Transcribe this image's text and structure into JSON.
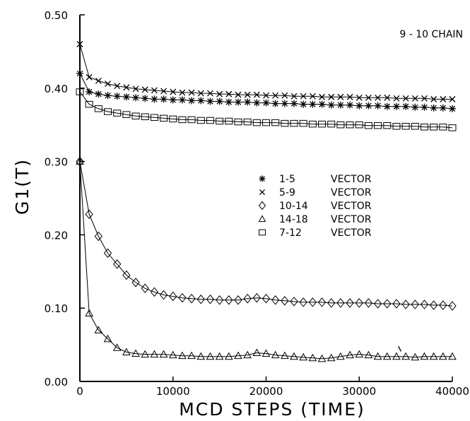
{
  "chart_data": {
    "type": "scatter",
    "title": "",
    "annotation": "9 - 10 CHAIN",
    "xlabel": "MCD STEPS (TIME)",
    "ylabel": "G1(T)",
    "xlim": [
      0,
      40000
    ],
    "ylim": [
      0.0,
      0.5
    ],
    "xticks": [
      0,
      10000,
      20000,
      30000,
      40000
    ],
    "xtick_labels": [
      "0",
      "10000",
      "20000",
      "30000",
      "40000"
    ],
    "yticks": [
      0.0,
      0.1,
      0.2,
      0.3,
      0.4,
      0.5
    ],
    "ytick_labels": [
      "0.00",
      "0.10",
      "0.20",
      "0.30",
      "0.40",
      "0.50"
    ],
    "grid": false,
    "legend_position": "center-right",
    "series": [
      {
        "name": "1-5",
        "legend_label": "VECTOR",
        "marker": "asterisk",
        "x": [
          0,
          1000,
          2000,
          3000,
          4000,
          5000,
          6000,
          7000,
          8000,
          9000,
          10000,
          11000,
          12000,
          13000,
          14000,
          15000,
          16000,
          17000,
          18000,
          19000,
          20000,
          21000,
          22000,
          23000,
          24000,
          25000,
          26000,
          27000,
          28000,
          29000,
          30000,
          31000,
          32000,
          33000,
          34000,
          35000,
          36000,
          37000,
          38000,
          39000,
          40000
        ],
        "y": [
          0.42,
          0.395,
          0.392,
          0.39,
          0.389,
          0.388,
          0.387,
          0.386,
          0.385,
          0.385,
          0.384,
          0.384,
          0.383,
          0.383,
          0.382,
          0.382,
          0.381,
          0.381,
          0.381,
          0.38,
          0.38,
          0.379,
          0.379,
          0.379,
          0.378,
          0.378,
          0.378,
          0.377,
          0.377,
          0.377,
          0.376,
          0.376,
          0.376,
          0.375,
          0.375,
          0.375,
          0.374,
          0.374,
          0.373,
          0.373,
          0.372
        ]
      },
      {
        "name": "5-9",
        "legend_label": "VECTOR",
        "marker": "x",
        "x": [
          0,
          1000,
          2000,
          3000,
          4000,
          5000,
          6000,
          7000,
          8000,
          9000,
          10000,
          11000,
          12000,
          13000,
          14000,
          15000,
          16000,
          17000,
          18000,
          19000,
          20000,
          21000,
          22000,
          23000,
          24000,
          25000,
          26000,
          27000,
          28000,
          29000,
          30000,
          31000,
          32000,
          33000,
          34000,
          35000,
          36000,
          37000,
          38000,
          39000,
          40000
        ],
        "y": [
          0.46,
          0.415,
          0.41,
          0.406,
          0.403,
          0.401,
          0.399,
          0.398,
          0.397,
          0.396,
          0.395,
          0.394,
          0.394,
          0.393,
          0.393,
          0.392,
          0.392,
          0.391,
          0.391,
          0.391,
          0.39,
          0.39,
          0.39,
          0.389,
          0.389,
          0.389,
          0.388,
          0.388,
          0.388,
          0.388,
          0.387,
          0.387,
          0.387,
          0.387,
          0.386,
          0.386,
          0.386,
          0.386,
          0.385,
          0.385,
          0.385
        ]
      },
      {
        "name": "10-14",
        "legend_label": "VECTOR",
        "marker": "diamond",
        "x": [
          0,
          1000,
          2000,
          3000,
          4000,
          5000,
          6000,
          7000,
          8000,
          9000,
          10000,
          11000,
          12000,
          13000,
          14000,
          15000,
          16000,
          17000,
          18000,
          19000,
          20000,
          21000,
          22000,
          23000,
          24000,
          25000,
          26000,
          27000,
          28000,
          29000,
          30000,
          31000,
          32000,
          33000,
          34000,
          35000,
          36000,
          37000,
          38000,
          39000,
          40000
        ],
        "y": [
          0.3,
          0.228,
          0.198,
          0.175,
          0.16,
          0.145,
          0.135,
          0.127,
          0.122,
          0.118,
          0.116,
          0.114,
          0.113,
          0.112,
          0.112,
          0.111,
          0.111,
          0.111,
          0.113,
          0.114,
          0.113,
          0.111,
          0.11,
          0.109,
          0.108,
          0.108,
          0.108,
          0.107,
          0.107,
          0.107,
          0.107,
          0.107,
          0.106,
          0.106,
          0.106,
          0.105,
          0.105,
          0.105,
          0.104,
          0.104,
          0.103
        ]
      },
      {
        "name": "14-18",
        "legend_label": "VECTOR",
        "marker": "triangle",
        "x": [
          0,
          1000,
          2000,
          3000,
          4000,
          5000,
          6000,
          7000,
          8000,
          9000,
          10000,
          11000,
          12000,
          13000,
          14000,
          15000,
          16000,
          17000,
          18000,
          19000,
          20000,
          21000,
          22000,
          23000,
          24000,
          25000,
          26000,
          27000,
          28000,
          29000,
          30000,
          31000,
          32000,
          33000,
          34000,
          35000,
          36000,
          37000,
          38000,
          39000,
          40000
        ],
        "y": [
          0.3,
          0.093,
          0.07,
          0.058,
          0.046,
          0.04,
          0.038,
          0.037,
          0.037,
          0.037,
          0.036,
          0.035,
          0.035,
          0.034,
          0.034,
          0.034,
          0.034,
          0.035,
          0.036,
          0.039,
          0.038,
          0.036,
          0.035,
          0.034,
          0.033,
          0.032,
          0.031,
          0.032,
          0.034,
          0.036,
          0.037,
          0.036,
          0.034,
          0.034,
          0.034,
          0.034,
          0.033,
          0.034,
          0.034,
          0.034,
          0.034
        ]
      },
      {
        "name": "7-12",
        "legend_label": "VECTOR",
        "marker": "square",
        "x": [
          0,
          1000,
          2000,
          3000,
          4000,
          5000,
          6000,
          7000,
          8000,
          9000,
          10000,
          11000,
          12000,
          13000,
          14000,
          15000,
          16000,
          17000,
          18000,
          19000,
          20000,
          21000,
          22000,
          23000,
          24000,
          25000,
          26000,
          27000,
          28000,
          29000,
          30000,
          31000,
          32000,
          33000,
          34000,
          35000,
          36000,
          37000,
          38000,
          39000,
          40000
        ],
        "y": [
          0.395,
          0.378,
          0.372,
          0.368,
          0.366,
          0.364,
          0.362,
          0.361,
          0.36,
          0.359,
          0.358,
          0.357,
          0.357,
          0.356,
          0.356,
          0.355,
          0.355,
          0.354,
          0.354,
          0.353,
          0.353,
          0.353,
          0.352,
          0.352,
          0.352,
          0.351,
          0.351,
          0.351,
          0.35,
          0.35,
          0.35,
          0.349,
          0.349,
          0.349,
          0.348,
          0.348,
          0.348,
          0.347,
          0.347,
          0.347,
          0.346
        ]
      }
    ]
  }
}
